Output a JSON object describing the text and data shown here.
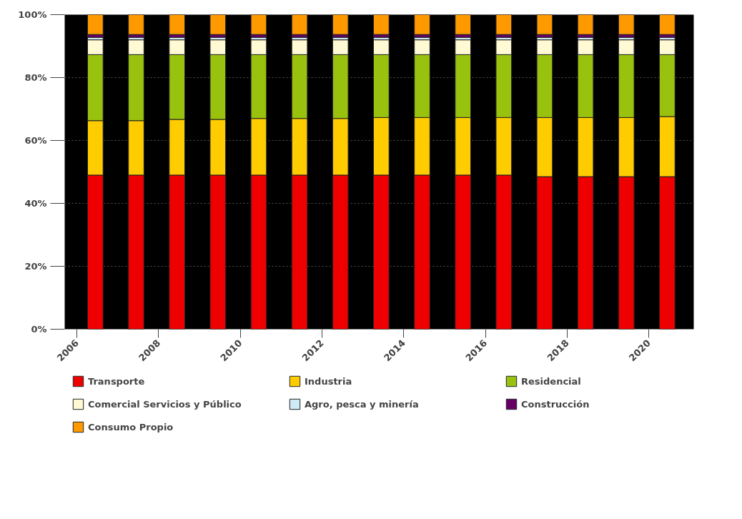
{
  "chart_data": {
    "type": "bar",
    "stacked": true,
    "categories": [
      "2006",
      null,
      "2008",
      null,
      "2010",
      null,
      "2012",
      null,
      "2014",
      null,
      "2016",
      null,
      "2018",
      null,
      "2020"
    ],
    "series": [
      {
        "name": "Transporte",
        "color": "#ee0000",
        "values": [
          49,
          49,
          49,
          49,
          49,
          49,
          49,
          49,
          49,
          49,
          49,
          48.5,
          48.5,
          48.5,
          48.5
        ]
      },
      {
        "name": "Industria",
        "color": "#ffcc00",
        "values": [
          17.3,
          17.3,
          17.7,
          17.7,
          18,
          18,
          18,
          18.3,
          18.3,
          18.3,
          18.3,
          18.8,
          18.8,
          18.8,
          19.1
        ]
      },
      {
        "name": "Residencial",
        "color": "#99c20f",
        "values": [
          21,
          21,
          20.6,
          20.6,
          20.3,
          20.3,
          20.3,
          20,
          20,
          20,
          20,
          20,
          20,
          20,
          19.7
        ]
      },
      {
        "name": "Comercial Servicios y Público",
        "color": "#fffad4",
        "values": [
          4.7,
          4.7,
          4.7,
          4.7,
          4.7,
          4.7,
          4.7,
          4.7,
          4.7,
          4.7,
          4.7,
          4.7,
          4.7,
          4.7,
          4.7
        ]
      },
      {
        "name": "Agro, pesca y minería",
        "color": "#cdeaf5",
        "values": [
          0.8,
          0.8,
          0.8,
          0.8,
          0.8,
          0.8,
          0.8,
          0.8,
          0.8,
          0.8,
          0.8,
          0.8,
          0.8,
          0.8,
          0.8
        ]
      },
      {
        "name": "Construcción",
        "color": "#660066",
        "values": [
          0.9,
          0.9,
          0.9,
          0.9,
          0.9,
          0.9,
          0.9,
          0.9,
          0.9,
          0.9,
          0.9,
          0.9,
          0.9,
          0.9,
          0.9
        ]
      },
      {
        "name": "Consumo Propio",
        "color": "#ff9900",
        "values": [
          6.3,
          6.3,
          6.3,
          6.3,
          6.3,
          6.3,
          6.3,
          6.3,
          6.3,
          6.3,
          6.3,
          6.3,
          6.3,
          6.3,
          6.3
        ]
      }
    ],
    "ylim": [
      0,
      100
    ],
    "yticks": [
      {
        "value": 0,
        "label": "0%"
      },
      {
        "value": 20,
        "label": "20%"
      },
      {
        "value": 40,
        "label": "40%"
      },
      {
        "value": 60,
        "label": "60%"
      },
      {
        "value": 80,
        "label": "80%"
      },
      {
        "value": 100,
        "label": "100%"
      }
    ],
    "grid": "y",
    "legend": "bottom"
  }
}
